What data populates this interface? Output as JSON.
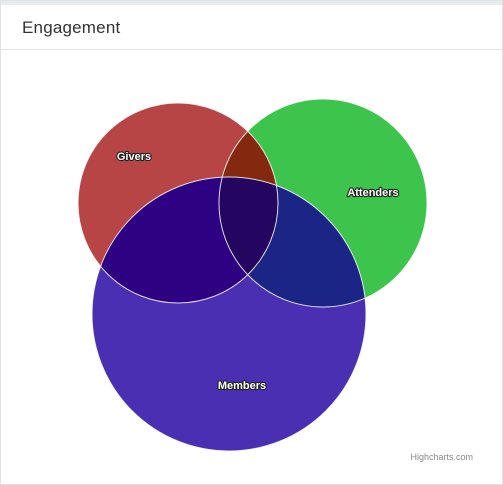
{
  "panel": {
    "title": "Engagement"
  },
  "chart_data": {
    "type": "venn",
    "title": "",
    "sets": [
      {
        "name": "Givers",
        "color": "#b84545"
      },
      {
        "name": "Attenders",
        "color": "#3cc44c"
      },
      {
        "name": "Members",
        "color": "#4a2fb2"
      }
    ],
    "intersections": [
      {
        "sets": [
          "Givers",
          "Attenders"
        ],
        "color": "#84290f"
      },
      {
        "sets": [
          "Givers",
          "Members"
        ],
        "color": "#2e0082"
      },
      {
        "sets": [
          "Attenders",
          "Members"
        ],
        "color": "#1a2585"
      },
      {
        "sets": [
          "Givers",
          "Attenders",
          "Members"
        ],
        "color": "#240660"
      }
    ]
  },
  "credits": "Highcharts.com"
}
